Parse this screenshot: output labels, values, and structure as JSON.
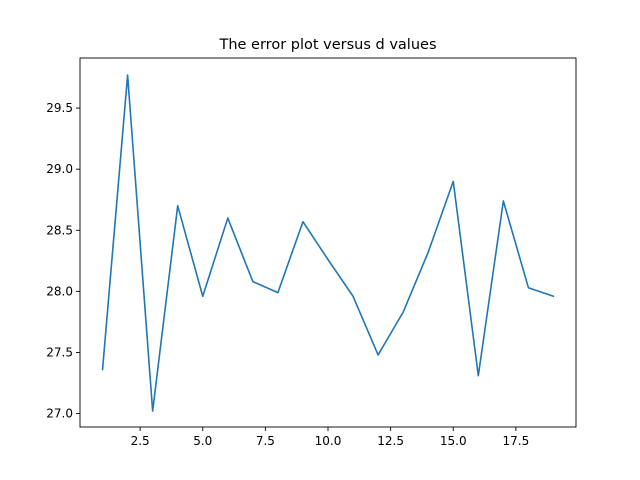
{
  "chart_data": {
    "type": "line",
    "title": "The error plot versus d values",
    "xlabel": "",
    "ylabel": "",
    "xlim": [
      0.1,
      19.9
    ],
    "ylim": [
      26.89,
      29.91
    ],
    "grid": false,
    "x_ticks": [
      2.5,
      5.0,
      7.5,
      10.0,
      12.5,
      15.0,
      17.5
    ],
    "x_tick_labels": [
      "2.5",
      "5.0",
      "7.5",
      "10.0",
      "12.5",
      "15.0",
      "17.5"
    ],
    "y_ticks": [
      27.0,
      27.5,
      28.0,
      28.5,
      29.0,
      29.5
    ],
    "y_tick_labels": [
      "27.0",
      "27.5",
      "28.0",
      "28.5",
      "29.0",
      "29.5"
    ],
    "series": [
      {
        "color": "#1f77b4",
        "x": [
          1,
          2,
          3,
          4,
          5,
          6,
          7,
          8,
          9,
          10,
          11,
          12,
          13,
          14,
          15,
          16,
          17,
          18,
          19
        ],
        "y": [
          27.36,
          29.77,
          27.02,
          28.7,
          27.96,
          28.6,
          28.08,
          27.99,
          28.57,
          28.26,
          27.96,
          27.48,
          27.83,
          28.32,
          28.9,
          27.31,
          28.74,
          28.03,
          27.96
        ]
      }
    ]
  }
}
